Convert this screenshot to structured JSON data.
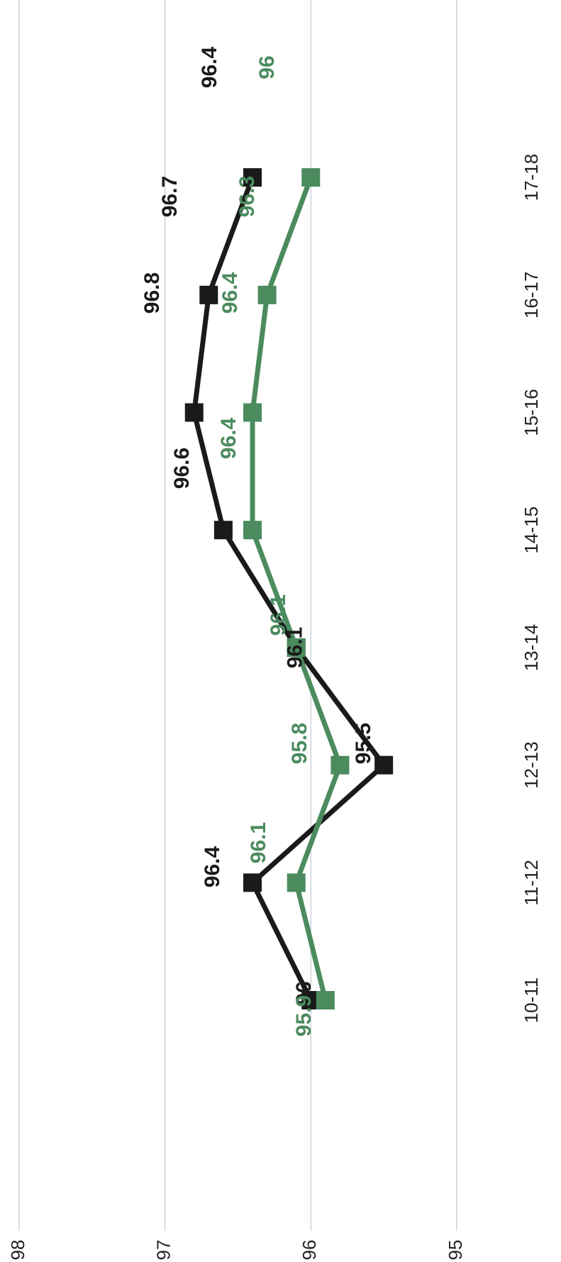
{
  "chart_data": {
    "type": "line",
    "categories": [
      "10-11",
      "11-12",
      "12-13",
      "13-14",
      "14-15",
      "15-16",
      "16-17",
      "17-18"
    ],
    "series": [
      {
        "name": "",
        "color": "#1a1a1a",
        "values": [
          96,
          96.4,
          95.5,
          96.1,
          96.6,
          96.8,
          96.7,
          96.4
        ],
        "labels": [
          "96",
          "96.4",
          "95.5",
          "96.1",
          "96.6",
          "96.8",
          "96.7",
          "96.4"
        ]
      },
      {
        "name": "",
        "color": "#4b8b5e",
        "values": [
          95.9,
          96.1,
          95.8,
          96.1,
          96.4,
          96.4,
          96.3,
          96
        ],
        "labels": [
          "95.9",
          "96.1",
          "95.8",
          "96.1",
          "96.4",
          "96.4",
          "96.3",
          "96"
        ]
      }
    ],
    "yticks": [
      "95",
      "96",
      "97",
      "98"
    ],
    "ylim": [
      95,
      98
    ],
    "grid": true,
    "title": "",
    "xlabel": "",
    "ylabel": ""
  }
}
